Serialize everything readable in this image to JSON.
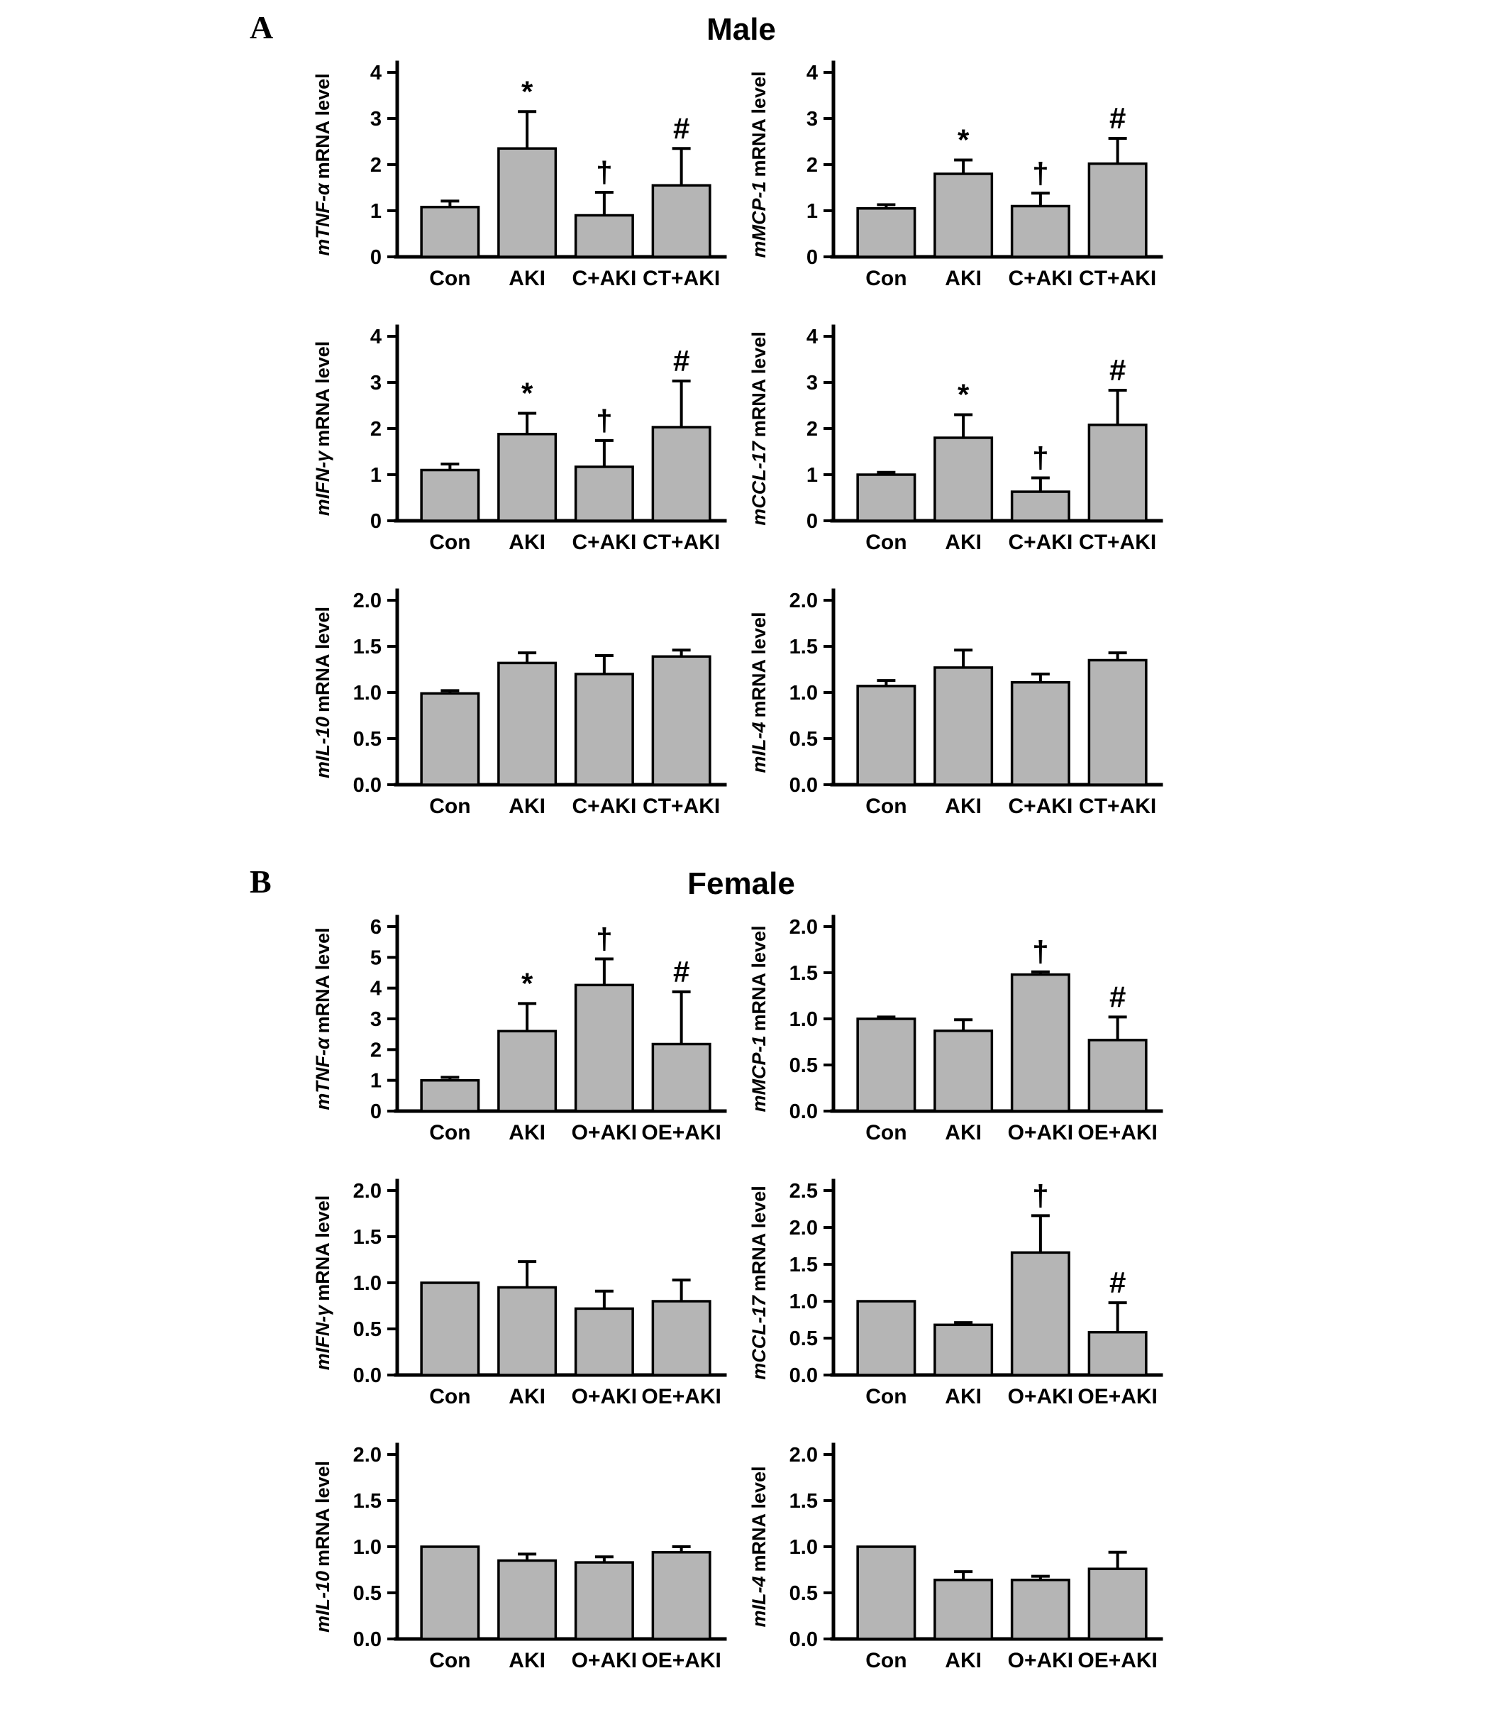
{
  "panels": [
    {
      "label": "A",
      "title": "Male"
    },
    {
      "label": "B",
      "title": "Female"
    }
  ],
  "chart_data": [
    {
      "id": "tnfa-male",
      "panel": "A",
      "type": "bar",
      "title": "",
      "xlabel": "",
      "ylabel": "mTNF-α mRNA level",
      "ylabel_gene": "mTNF-α",
      "ylabel_rest": "mRNA level",
      "categories": [
        "Con",
        "AKI",
        "C+AKI",
        "CT+AKI"
      ],
      "values": [
        1.08,
        2.35,
        0.9,
        1.55
      ],
      "errors": [
        0.13,
        0.8,
        0.5,
        0.8
      ],
      "annotations": [
        "",
        "*",
        "†",
        "#"
      ],
      "ylim": [
        0,
        4
      ],
      "yticks": [
        "0",
        "1",
        "2",
        "3",
        "4"
      ],
      "grid": false,
      "legend": "none",
      "bar_color": "#b5b5b5"
    },
    {
      "id": "mcp1-male",
      "panel": "A",
      "type": "bar",
      "title": "",
      "xlabel": "",
      "ylabel": "mMCP-1 mRNA level",
      "ylabel_gene": "mMCP-1",
      "ylabel_rest": "mRNA level",
      "categories": [
        "Con",
        "AKI",
        "C+AKI",
        "CT+AKI"
      ],
      "values": [
        1.05,
        1.8,
        1.1,
        2.02
      ],
      "errors": [
        0.08,
        0.3,
        0.28,
        0.55
      ],
      "annotations": [
        "",
        "*",
        "†",
        "#"
      ],
      "ylim": [
        0,
        4
      ],
      "yticks": [
        "0",
        "1",
        "2",
        "3",
        "4"
      ],
      "grid": false,
      "legend": "none",
      "bar_color": "#b5b5b5"
    },
    {
      "id": "ifng-male",
      "panel": "A",
      "type": "bar",
      "title": "",
      "xlabel": "",
      "ylabel": "mIFN-γ mRNA level",
      "ylabel_gene": "mIFN-γ",
      "ylabel_rest": "mRNA level",
      "categories": [
        "Con",
        "AKI",
        "C+AKI",
        "CT+AKI"
      ],
      "values": [
        1.1,
        1.88,
        1.17,
        2.03
      ],
      "errors": [
        0.13,
        0.45,
        0.57,
        1.0
      ],
      "annotations": [
        "",
        "*",
        "†",
        "#"
      ],
      "ylim": [
        0,
        4
      ],
      "yticks": [
        "0",
        "1",
        "2",
        "3",
        "4"
      ],
      "grid": false,
      "legend": "none",
      "bar_color": "#b5b5b5"
    },
    {
      "id": "ccl17-male",
      "panel": "A",
      "type": "bar",
      "title": "",
      "xlabel": "",
      "ylabel": "mCCL-17 mRNA level",
      "ylabel_gene": "mCCL-17",
      "ylabel_rest": "mRNA level",
      "categories": [
        "Con",
        "AKI",
        "C+AKI",
        "CT+AKI"
      ],
      "values": [
        1.0,
        1.8,
        0.63,
        2.08
      ],
      "errors": [
        0.05,
        0.5,
        0.3,
        0.75
      ],
      "annotations": [
        "",
        "*",
        "†",
        "#"
      ],
      "ylim": [
        0,
        4
      ],
      "yticks": [
        "0",
        "1",
        "2",
        "3",
        "4"
      ],
      "grid": false,
      "legend": "none",
      "bar_color": "#b5b5b5"
    },
    {
      "id": "il10-male",
      "panel": "A",
      "type": "bar",
      "title": "",
      "xlabel": "",
      "ylabel": "mIL-10 mRNA level",
      "ylabel_gene": "mIL-10",
      "ylabel_rest": "mRNA level",
      "categories": [
        "Con",
        "AKI",
        "C+AKI",
        "CT+AKI"
      ],
      "values": [
        0.99,
        1.32,
        1.2,
        1.39
      ],
      "errors": [
        0.03,
        0.11,
        0.2,
        0.07
      ],
      "annotations": [
        "",
        "",
        "",
        ""
      ],
      "ylim": [
        0,
        2
      ],
      "yticks": [
        "0.0",
        "0.5",
        "1.0",
        "1.5",
        "2.0"
      ],
      "grid": false,
      "legend": "none",
      "bar_color": "#b5b5b5"
    },
    {
      "id": "il4-male",
      "panel": "A",
      "type": "bar",
      "title": "",
      "xlabel": "",
      "ylabel": "mIL-4 mRNA level",
      "ylabel_gene": "mIL-4",
      "ylabel_rest": "mRNA level",
      "categories": [
        "Con",
        "AKI",
        "C+AKI",
        "CT+AKI"
      ],
      "values": [
        1.07,
        1.27,
        1.11,
        1.35
      ],
      "errors": [
        0.06,
        0.19,
        0.09,
        0.08
      ],
      "annotations": [
        "",
        "",
        "",
        ""
      ],
      "ylim": [
        0,
        2
      ],
      "yticks": [
        "0.0",
        "0.5",
        "1.0",
        "1.5",
        "2.0"
      ],
      "grid": false,
      "legend": "none",
      "bar_color": "#b5b5b5"
    },
    {
      "id": "tnfa-female",
      "panel": "B",
      "type": "bar",
      "title": "",
      "xlabel": "",
      "ylabel": "mTNF-α mRNA level",
      "ylabel_gene": "mTNF-α",
      "ylabel_rest": "mRNA level",
      "categories": [
        "Con",
        "AKI",
        "O+AKI",
        "OE+AKI"
      ],
      "values": [
        1.0,
        2.6,
        4.1,
        2.18
      ],
      "errors": [
        0.1,
        0.9,
        0.85,
        1.7
      ],
      "annotations": [
        "",
        "*",
        "†",
        "#"
      ],
      "ylim": [
        0,
        6
      ],
      "yticks": [
        "0",
        "1",
        "2",
        "3",
        "4",
        "5",
        "6"
      ],
      "grid": false,
      "legend": "none",
      "bar_color": "#b5b5b5"
    },
    {
      "id": "mcp1-female",
      "panel": "B",
      "type": "bar",
      "title": "",
      "xlabel": "",
      "ylabel": "mMCP-1 mRNA level",
      "ylabel_gene": "mMCP-1",
      "ylabel_rest": "mRNA level",
      "categories": [
        "Con",
        "AKI",
        "O+AKI",
        "OE+AKI"
      ],
      "values": [
        1.0,
        0.87,
        1.48,
        0.77
      ],
      "errors": [
        0.02,
        0.12,
        0.03,
        0.25
      ],
      "annotations": [
        "",
        "",
        "†",
        "#"
      ],
      "ylim": [
        0,
        2
      ],
      "yticks": [
        "0.0",
        "0.5",
        "1.0",
        "1.5",
        "2.0"
      ],
      "grid": false,
      "legend": "none",
      "bar_color": "#b5b5b5"
    },
    {
      "id": "ifng-female",
      "panel": "B",
      "type": "bar",
      "title": "",
      "xlabel": "",
      "ylabel": "mIFN-γ mRNA level",
      "ylabel_gene": "mIFN-γ",
      "ylabel_rest": "mRNA level",
      "categories": [
        "Con",
        "AKI",
        "O+AKI",
        "OE+AKI"
      ],
      "values": [
        1.0,
        0.95,
        0.72,
        0.8
      ],
      "errors": [
        0,
        0.28,
        0.19,
        0.23
      ],
      "annotations": [
        "",
        "",
        "",
        ""
      ],
      "ylim": [
        0,
        2
      ],
      "yticks": [
        "0.0",
        "0.5",
        "1.0",
        "1.5",
        "2.0"
      ],
      "grid": false,
      "legend": "none",
      "bar_color": "#b5b5b5"
    },
    {
      "id": "ccl17-female",
      "panel": "B",
      "type": "bar",
      "title": "",
      "xlabel": "",
      "ylabel": "mCCL-17 mRNA level",
      "ylabel_gene": "mCCL-17",
      "ylabel_rest": "mRNA level",
      "categories": [
        "Con",
        "AKI",
        "O+AKI",
        "OE+AKI"
      ],
      "values": [
        1.0,
        0.68,
        1.66,
        0.58
      ],
      "errors": [
        0,
        0.03,
        0.5,
        0.4
      ],
      "annotations": [
        "",
        "",
        "†",
        "#"
      ],
      "ylim": [
        0,
        2.5
      ],
      "yticks": [
        "0.0",
        "0.5",
        "1.0",
        "1.5",
        "2.0",
        "2.5"
      ],
      "grid": false,
      "legend": "none",
      "bar_color": "#b5b5b5"
    },
    {
      "id": "il10-female",
      "panel": "B",
      "type": "bar",
      "title": "",
      "xlabel": "",
      "ylabel": "mIL-10 mRNA level",
      "ylabel_gene": "mIL-10",
      "ylabel_rest": "mRNA level",
      "categories": [
        "Con",
        "AKI",
        "O+AKI",
        "OE+AKI"
      ],
      "values": [
        1.0,
        0.85,
        0.83,
        0.94
      ],
      "errors": [
        0,
        0.07,
        0.06,
        0.06
      ],
      "annotations": [
        "",
        "",
        "",
        ""
      ],
      "ylim": [
        0,
        2
      ],
      "yticks": [
        "0.0",
        "0.5",
        "1.0",
        "1.5",
        "2.0"
      ],
      "grid": false,
      "legend": "none",
      "bar_color": "#b5b5b5"
    },
    {
      "id": "il4-female",
      "panel": "B",
      "type": "bar",
      "title": "",
      "xlabel": "",
      "ylabel": "mIL-4 mRNA level",
      "ylabel_gene": "mIL-4",
      "ylabel_rest": "mRNA level",
      "categories": [
        "Con",
        "AKI",
        "O+AKI",
        "OE+AKI"
      ],
      "values": [
        1.0,
        0.64,
        0.64,
        0.76
      ],
      "errors": [
        0,
        0.09,
        0.04,
        0.18
      ],
      "annotations": [
        "",
        "",
        "",
        ""
      ],
      "ylim": [
        0,
        2
      ],
      "yticks": [
        "0.0",
        "0.5",
        "1.0",
        "1.5",
        "2.0"
      ],
      "grid": false,
      "legend": "none",
      "bar_color": "#b5b5b5"
    }
  ]
}
